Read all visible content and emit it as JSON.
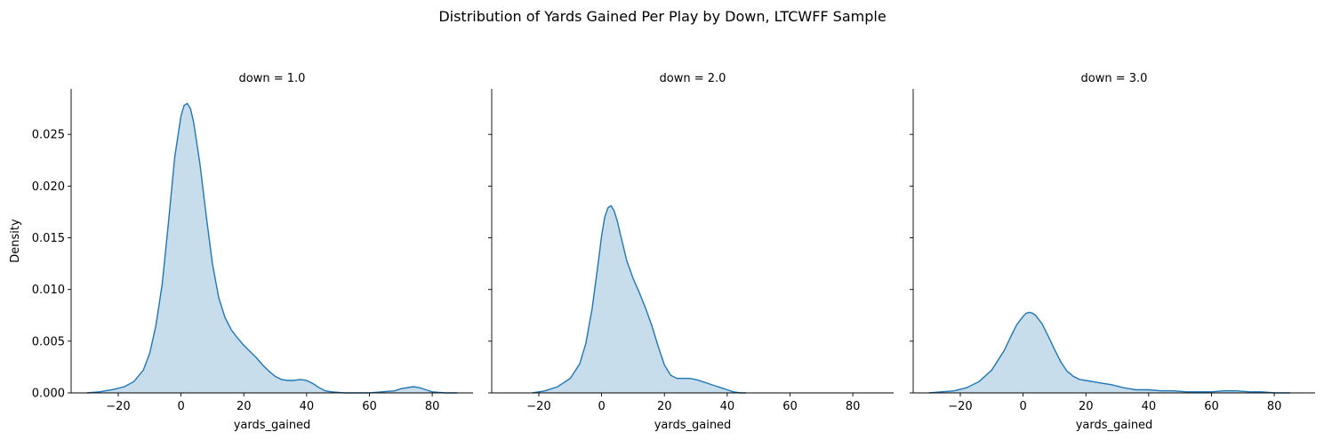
{
  "figure": {
    "title": "Distribution of Yards Gained Per Play by Down, LTCWFF Sample"
  },
  "style": {
    "line_color": "#1f77b4",
    "fill_color": "#1f77b4",
    "fill_opacity": 0.25
  },
  "chart_data": [
    {
      "type": "area",
      "title": "down = 1.0",
      "xlabel": "yards_gained",
      "ylabel": "Density",
      "xlim": [
        -35,
        93
      ],
      "ylim": [
        0,
        0.0294
      ],
      "xticks": [
        -20,
        0,
        20,
        40,
        60,
        80
      ],
      "yticks": [
        0.0,
        0.005,
        0.01,
        0.015,
        0.02,
        0.025
      ],
      "ytick_labels": [
        "0.000",
        "0.005",
        "0.010",
        "0.015",
        "0.020",
        "0.025"
      ],
      "grid": false,
      "series": [
        {
          "x": [
            -30,
            -26,
            -22,
            -18,
            -15,
            -12,
            -10,
            -8,
            -6,
            -4,
            -2,
            0,
            1,
            2,
            3,
            4,
            6,
            8,
            10,
            12,
            14,
            16,
            18,
            20,
            22,
            24,
            26,
            28,
            30,
            32,
            34,
            36,
            38,
            40,
            42,
            44,
            46,
            48,
            52,
            56,
            60,
            64,
            68,
            70,
            72,
            74,
            76,
            78,
            80,
            84,
            88
          ],
          "y": [
            0.0,
            0.0001,
            0.0003,
            0.0006,
            0.0011,
            0.0022,
            0.0038,
            0.0065,
            0.0105,
            0.0165,
            0.0228,
            0.0268,
            0.0278,
            0.028,
            0.0275,
            0.0262,
            0.0222,
            0.0172,
            0.0125,
            0.0092,
            0.0073,
            0.0061,
            0.0053,
            0.0046,
            0.004,
            0.0034,
            0.0027,
            0.0021,
            0.0016,
            0.0013,
            0.0012,
            0.0012,
            0.0013,
            0.0012,
            0.0009,
            0.0005,
            0.0002,
            0.0001,
            0.0,
            0.0,
            0.0,
            0.0001,
            0.0002,
            0.0004,
            0.0005,
            0.0006,
            0.0005,
            0.0003,
            0.0001,
            0.0,
            0.0
          ]
        }
      ]
    },
    {
      "type": "area",
      "title": "down = 2.0",
      "xlabel": "yards_gained",
      "ylabel": "",
      "xlim": [
        -35,
        93
      ],
      "ylim": [
        0,
        0.0294
      ],
      "xticks": [
        -20,
        0,
        20,
        40,
        60,
        80
      ],
      "yticks": [
        0.0,
        0.005,
        0.01,
        0.015,
        0.02,
        0.025
      ],
      "grid": false,
      "series": [
        {
          "x": [
            -22,
            -18,
            -14,
            -10,
            -7,
            -5,
            -3,
            -1,
            0,
            1,
            2,
            3,
            4,
            5,
            6,
            8,
            10,
            12,
            14,
            16,
            18,
            20,
            22,
            24,
            26,
            28,
            30,
            32,
            34,
            36,
            38,
            40,
            42,
            44,
            46
          ],
          "y": [
            0.0,
            0.0002,
            0.0006,
            0.0014,
            0.0028,
            0.0048,
            0.0082,
            0.0128,
            0.0152,
            0.017,
            0.0179,
            0.0181,
            0.0176,
            0.0166,
            0.0153,
            0.0128,
            0.0111,
            0.0097,
            0.0082,
            0.0065,
            0.0045,
            0.0027,
            0.0017,
            0.0014,
            0.0014,
            0.0014,
            0.0013,
            0.0011,
            0.0009,
            0.0007,
            0.0005,
            0.0003,
            0.0001,
            0.0,
            0.0
          ]
        }
      ]
    },
    {
      "type": "area",
      "title": "down = 3.0",
      "xlabel": "yards_gained",
      "ylabel": "",
      "xlim": [
        -35,
        93
      ],
      "ylim": [
        0,
        0.0294
      ],
      "xticks": [
        -20,
        0,
        20,
        40,
        60,
        80
      ],
      "yticks": [
        0.0,
        0.005,
        0.01,
        0.015,
        0.02,
        0.025
      ],
      "grid": false,
      "series": [
        {
          "x": [
            -30,
            -26,
            -22,
            -18,
            -14,
            -10,
            -6,
            -4,
            -2,
            0,
            1,
            2,
            3,
            4,
            6,
            8,
            10,
            12,
            14,
            16,
            18,
            20,
            24,
            28,
            32,
            36,
            40,
            44,
            48,
            52,
            56,
            60,
            64,
            68,
            72,
            76,
            80,
            85
          ],
          "y": [
            0.0,
            0.0001,
            0.0002,
            0.0005,
            0.0011,
            0.0022,
            0.0041,
            0.0054,
            0.0066,
            0.0074,
            0.0077,
            0.0078,
            0.0077,
            0.0075,
            0.0067,
            0.0055,
            0.0042,
            0.003,
            0.0021,
            0.0016,
            0.0013,
            0.0012,
            0.001,
            0.0008,
            0.0005,
            0.0003,
            0.0003,
            0.0002,
            0.0002,
            0.0001,
            0.0001,
            0.0001,
            0.0002,
            0.0002,
            0.0001,
            0.0001,
            0.0,
            0.0
          ]
        }
      ]
    }
  ]
}
